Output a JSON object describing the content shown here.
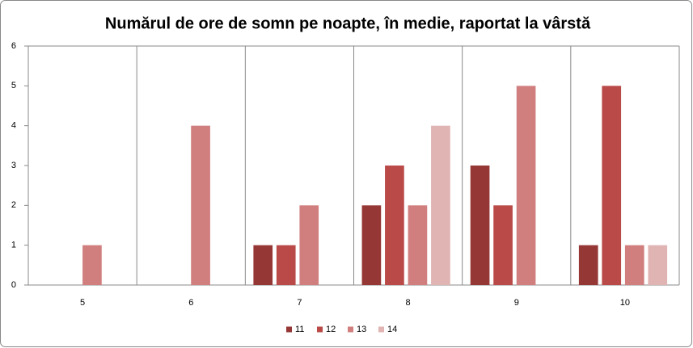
{
  "chart_data": {
    "type": "bar",
    "title": "Numărul de ore de somn pe noapte,  în medie, raportat la vârstă",
    "categories": [
      "5",
      "6",
      "7",
      "8",
      "9",
      "10"
    ],
    "series": [
      {
        "name": "11",
        "color": "#953735",
        "values": [
          0,
          0,
          1,
          2,
          3,
          1
        ]
      },
      {
        "name": "12",
        "color": "#b94a48",
        "values": [
          0,
          0,
          1,
          3,
          2,
          5
        ]
      },
      {
        "name": "13",
        "color": "#d07f7e",
        "values": [
          1,
          4,
          2,
          2,
          5,
          1
        ]
      },
      {
        "name": "14",
        "color": "#e0b4b3",
        "values": [
          0,
          0,
          0,
          4,
          0,
          1
        ]
      }
    ],
    "ylim": [
      0,
      6
    ],
    "yticks": [
      0,
      1,
      2,
      3,
      4,
      5,
      6
    ],
    "grid": "x",
    "legend": "bottom"
  }
}
